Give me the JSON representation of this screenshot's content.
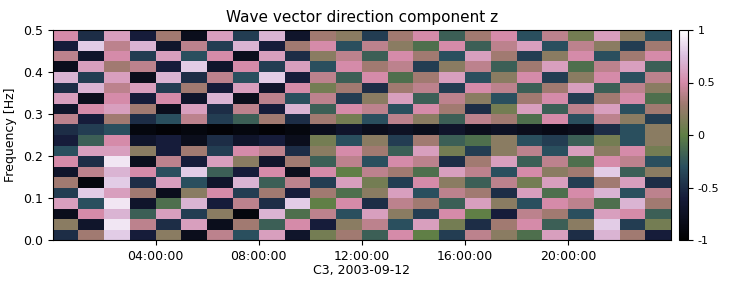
{
  "chart_data": {
    "type": "heatmap",
    "title": "Wave vector direction component z",
    "x_label": "C3, 2003-09-12",
    "y_label": "Frequency [Hz]",
    "xlim": [
      0,
      24
    ],
    "xticks": [
      {
        "value": 4,
        "label": "04:00:00"
      },
      {
        "value": 8,
        "label": "08:00:00"
      },
      {
        "value": 12,
        "label": "12:00:00"
      },
      {
        "value": 16,
        "label": "16:00:00"
      },
      {
        "value": 20,
        "label": "20:00:00"
      }
    ],
    "ylim": [
      0.0,
      0.5
    ],
    "yticks": [
      0.0,
      0.1,
      0.2,
      0.3,
      0.4,
      0.5
    ],
    "colorbar": {
      "range": [
        -1,
        1
      ],
      "ticks": [
        -1,
        -0.5,
        0,
        0.5,
        1
      ]
    },
    "cells": [
      [
        -0.5,
        0.3,
        0.8,
        -0.6,
        0.2,
        -0.8,
        0.4,
        -0.3,
        0.6,
        -0.7,
        0.1,
        0.3,
        -0.2,
        0.5,
        0.0,
        -0.4,
        0.4,
        0.2,
        -0.1,
        0.6,
        -0.5,
        0.7,
        0.3,
        -0.6
      ],
      [
        0.2,
        -0.7,
        0.9,
        0.4,
        -0.5,
        0.6,
        -0.8,
        0.3,
        -0.2,
        0.5,
        -0.6,
        0.2,
        0.4,
        -0.3,
        0.6,
        0.1,
        -0.5,
        0.3,
        0.5,
        -0.2,
        0.2,
        0.8,
        -0.4,
        0.1
      ],
      [
        -0.8,
        0.5,
        0.7,
        -0.2,
        0.6,
        -0.4,
        0.2,
        -0.9,
        0.7,
        -0.1,
        0.4,
        -0.3,
        0.6,
        0.2,
        -0.4,
        0.5,
        0.0,
        -0.6,
        0.4,
        0.3,
        -0.3,
        0.6,
        0.5,
        -0.2
      ],
      [
        0.6,
        -0.3,
        0.9,
        -0.7,
        -0.1,
        0.7,
        -0.6,
        0.4,
        -0.5,
        0.8,
        0.0,
        0.5,
        -0.5,
        0.4,
        0.3,
        -0.2,
        0.6,
        0.2,
        -0.3,
        0.5,
        0.4,
        -0.1,
        0.7,
        0.3
      ],
      [
        -0.4,
        0.8,
        0.6,
        0.3,
        -0.8,
        0.2,
        0.5,
        -0.4,
        0.3,
        -0.6,
        0.3,
        -0.1,
        0.2,
        0.6,
        -0.3,
        0.4,
        0.3,
        -0.5,
        0.6,
        -0.1,
        0.5,
        0.7,
        -0.3,
        0.4
      ],
      [
        0.3,
        -0.9,
        0.8,
        -0.5,
        0.6,
        -0.3,
        -0.7,
        0.7,
        -0.2,
        0.4,
        -0.4,
        0.6,
        0.1,
        -0.4,
        0.5,
        0.2,
        -0.2,
        0.4,
        0.1,
        0.6,
        -0.4,
        0.3,
        0.6,
        -0.5
      ],
      [
        -0.7,
        0.4,
        0.7,
        0.5,
        -0.3,
        0.8,
        -0.2,
        -0.6,
        0.5,
        -0.8,
        0.5,
        0.0,
        0.4,
        0.3,
        -0.1,
        0.6,
        0.4,
        -0.3,
        0.5,
        0.2,
        0.3,
        0.8,
        -0.2,
        0.2
      ],
      [
        0.5,
        -0.5,
        0.9,
        -0.8,
        0.4,
        -0.6,
        0.6,
        0.2,
        -0.7,
        0.3,
        -0.2,
        0.4,
        -0.3,
        0.5,
        0.4,
        -0.5,
        0.3,
        0.6,
        -0.2,
        0.4,
        -0.1,
        0.5,
        0.4,
        -0.3
      ],
      [
        -0.3,
        0.6,
        0.6,
        0.2,
        -0.6,
        0.3,
        -0.4,
        0.5,
        0.4,
        -0.5,
        0.2,
        0.5,
        0.3,
        -0.2,
        0.6,
        0.1,
        -0.4,
        0.2,
        0.4,
        -0.3,
        0.6,
        0.2,
        0.5,
        0.1
      ],
      [
        -0.6,
        -0.2,
        0.5,
        -0.7,
        -0.6,
        -0.8,
        -0.5,
        -0.7,
        -0.6,
        -0.8,
        0.1,
        -0.3,
        0.2,
        -0.4,
        0.3,
        -0.2,
        -0.1,
        0.2,
        -0.3,
        -0.4,
        -0.2,
        0.1,
        -0.3,
        0.2
      ],
      [
        -0.5,
        -0.4,
        -0.3,
        -0.9,
        -0.95,
        -0.9,
        -0.95,
        -0.9,
        -0.95,
        -0.9,
        -0.8,
        -0.7,
        -0.8,
        -0.75,
        -0.8,
        -0.7,
        -0.8,
        -0.75,
        -0.8,
        -0.85,
        -0.8,
        -0.5,
        -0.3,
        0.2
      ],
      [
        0.4,
        -0.6,
        0.3,
        -0.5,
        -0.3,
        0.4,
        -0.4,
        -0.2,
        0.3,
        -0.5,
        0.3,
        0.1,
        -0.3,
        0.4,
        0.2,
        -0.2,
        0.4,
        0.3,
        -0.1,
        0.5,
        -0.3,
        0.4,
        0.2,
        -0.4
      ],
      [
        -0.7,
        0.5,
        0.6,
        0.3,
        -0.8,
        0.6,
        -0.5,
        0.4,
        -0.6,
        0.7,
        -0.2,
        0.5,
        0.4,
        -0.3,
        0.5,
        0.3,
        -0.5,
        0.1,
        0.6,
        -0.2,
        0.4,
        0.6,
        -0.3,
        0.3
      ],
      [
        0.6,
        -0.8,
        0.5,
        -0.6,
        0.5,
        -0.7,
        0.7,
        -0.8,
        0.4,
        -0.3,
        0.4,
        -0.4,
        0.2,
        0.6,
        -0.2,
        0.4,
        0.2,
        -0.3,
        0.3,
        0.5,
        -0.4,
        0.3,
        0.5,
        -0.1
      ],
      [
        -0.5,
        0.7,
        0.4,
        0.6,
        -0.4,
        0.3,
        -0.6,
        0.6,
        -0.7,
        0.5,
        0.1,
        0.3,
        -0.5,
        0.3,
        0.4,
        -0.4,
        0.5,
        0.4,
        -0.2,
        0.3,
        0.6,
        -0.2,
        0.4,
        0.2
      ],
      [
        0.7,
        -0.4,
        0.6,
        -0.8,
        0.7,
        -0.5,
        0.4,
        -0.3,
        0.8,
        -0.6,
        0.4,
        -0.2,
        0.5,
        -0.1,
        0.3,
        0.6,
        -0.3,
        0.2,
        0.5,
        -0.4,
        0.2,
        0.5,
        -0.3,
        0.4
      ],
      [
        -0.8,
        0.6,
        0.3,
        0.4,
        -0.6,
        0.8,
        -0.7,
        0.5,
        -0.4,
        0.6,
        -0.3,
        0.5,
        0.3,
        0.4,
        -0.4,
        0.2,
        0.4,
        -0.2,
        0.3,
        0.6,
        -0.1,
        0.4,
        0.6,
        -0.2
      ],
      [
        0.4,
        -0.7,
        0.5,
        -0.4,
        0.6,
        -0.3,
        0.5,
        -0.8,
        0.6,
        -0.5,
        0.2,
        0.4,
        -0.2,
        0.5,
        0.3,
        -0.3,
        0.6,
        0.3,
        -0.4,
        0.2,
        0.5,
        -0.3,
        0.3,
        0.5
      ],
      [
        -0.6,
        0.8,
        0.4,
        0.7,
        -0.7,
        0.4,
        -0.4,
        0.7,
        -0.6,
        0.3,
        0.5,
        -0.3,
        0.4,
        0.2,
        -0.1,
        0.5,
        -0.2,
        0.4,
        0.6,
        -0.3,
        0.4,
        0.2,
        -0.4,
        0.3
      ],
      [
        0.5,
        -0.5,
        0.6,
        -0.6,
        0.3,
        -0.8,
        0.6,
        -0.4,
        0.7,
        -0.7,
        0.3,
        0.2,
        -0.4,
        0.3,
        0.5,
        -0.2,
        0.3,
        0.5,
        -0.3,
        0.4,
        0.1,
        0.6,
        0.2,
        -0.3
      ]
    ]
  }
}
